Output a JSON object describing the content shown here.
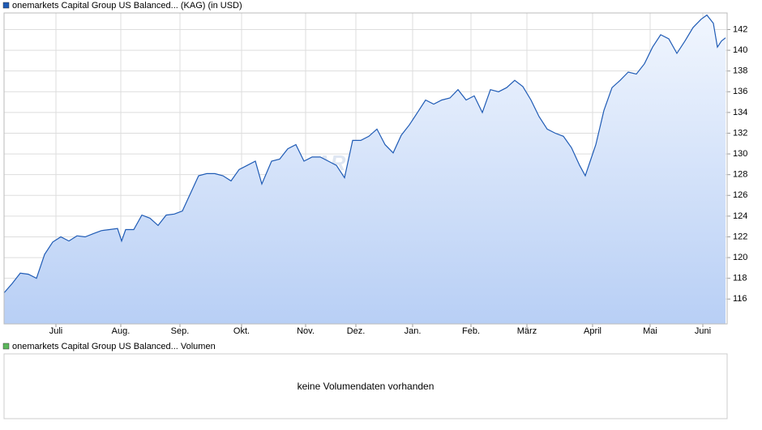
{
  "chart_data": {
    "type": "area",
    "title": "onemarkets Capital Group US Balanced... (KAG) (in USD)",
    "color": "#1f5bb5",
    "watermark": "ARIVA.DE",
    "x": [
      0,
      10,
      20,
      30,
      40,
      50,
      60,
      70,
      80,
      90,
      100,
      110,
      120,
      130,
      140,
      145,
      150,
      160,
      170,
      180,
      190,
      200,
      210,
      220,
      230,
      240,
      250,
      260,
      270,
      280,
      290,
      300,
      310,
      318,
      330,
      340,
      350,
      360,
      370,
      380,
      390,
      400,
      410,
      420,
      430,
      440,
      450,
      460,
      470,
      480,
      490,
      500,
      510,
      520,
      530,
      540,
      550,
      560,
      570,
      580,
      590,
      600,
      610,
      620,
      630,
      640,
      650,
      660,
      670,
      680,
      690,
      700,
      710,
      717,
      730,
      740,
      750,
      760,
      770,
      780,
      790,
      800,
      810,
      820,
      830,
      840,
      850,
      860,
      867,
      875,
      880,
      885,
      890
    ],
    "values": [
      116.6,
      117.5,
      118.5,
      118.4,
      118.0,
      120.3,
      121.5,
      122.0,
      121.6,
      122.1,
      122.0,
      122.3,
      122.6,
      122.7,
      122.8,
      121.6,
      122.7,
      122.7,
      124.1,
      123.8,
      123.1,
      124.1,
      124.2,
      124.5,
      126.2,
      127.9,
      128.1,
      128.1,
      127.9,
      127.4,
      128.5,
      128.9,
      129.3,
      127.1,
      129.3,
      129.5,
      130.5,
      130.9,
      129.3,
      129.7,
      129.7,
      129.3,
      128.9,
      127.7,
      131.3,
      131.3,
      131.7,
      132.4,
      130.9,
      130.1,
      131.8,
      132.8,
      134.0,
      135.2,
      134.8,
      135.2,
      135.4,
      136.2,
      135.2,
      135.6,
      134.0,
      136.2,
      136.0,
      136.4,
      137.1,
      136.5,
      135.2,
      133.6,
      132.4,
      132.0,
      131.7,
      130.6,
      128.9,
      127.9,
      130.9,
      134.2,
      136.4,
      137.1,
      137.9,
      137.7,
      138.7,
      140.3,
      141.5,
      141.1,
      139.7,
      140.9,
      142.2,
      143.0,
      143.4,
      142.6,
      140.3,
      140.9,
      141.2
    ],
    "xlim": [
      0,
      892
    ],
    "ylim": [
      113.6,
      143.6
    ],
    "yticks": [
      116,
      118,
      120,
      122,
      124,
      126,
      128,
      130,
      132,
      134,
      136,
      138,
      140,
      142
    ],
    "xticks": [
      {
        "value": 64,
        "label": "Juli"
      },
      {
        "value": 144,
        "label": "Aug."
      },
      {
        "value": 217,
        "label": "Sep."
      },
      {
        "value": 293,
        "label": "Okt."
      },
      {
        "value": 372,
        "label": "Nov."
      },
      {
        "value": 434,
        "label": "Dez."
      },
      {
        "value": 504,
        "label": "Jan."
      },
      {
        "value": 576,
        "label": "Feb."
      },
      {
        "value": 645,
        "label": "März"
      },
      {
        "value": 726,
        "label": "April"
      },
      {
        "value": 797,
        "label": "Mai"
      },
      {
        "value": 862,
        "label": "Juni"
      }
    ],
    "grid": true
  },
  "volume_panel": {
    "title": "onemarkets Capital Group US Balanced... Volumen",
    "message": "keine Volumendaten vorhanden",
    "color": "#5cb85c"
  }
}
